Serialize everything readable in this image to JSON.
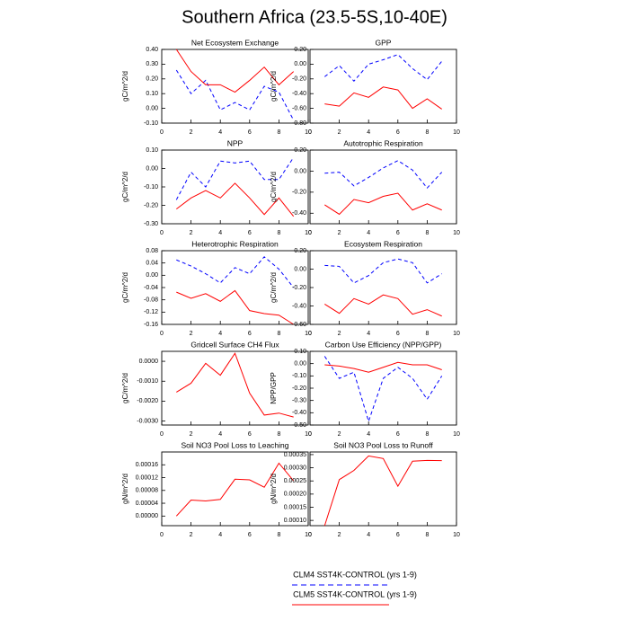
{
  "title": "Southern Africa (23.5-5S,10-40E)",
  "chart_data": [
    {
      "type": "line",
      "title": "Net Ecosystem Exchange",
      "ylabel": "gC/m^2/d",
      "x": [
        1,
        2,
        3,
        4,
        5,
        6,
        7,
        8,
        9
      ],
      "xlim": [
        0,
        10
      ],
      "xticks": [
        0,
        2,
        4,
        6,
        8,
        10
      ],
      "ylim": [
        -0.1,
        0.4
      ],
      "yticks": [
        {
          "value": -0.1,
          "label": "-0.10"
        },
        {
          "value": 0,
          "label": "0.00"
        },
        {
          "value": 0.1,
          "label": "0.10"
        },
        {
          "value": 0.2,
          "label": "0.20"
        },
        {
          "value": 0.3,
          "label": "0.30"
        },
        {
          "value": 0.4,
          "label": "0.40"
        }
      ],
      "series": [
        {
          "name": "CLM4 SST4K-CONTROL (yrs 1-9)",
          "color": "#0000ff",
          "dashed": true,
          "values": [
            0.26,
            0.1,
            0.19,
            -0.01,
            0.04,
            -0.01,
            0.15,
            0.11,
            -0.08
          ]
        },
        {
          "name": "CLM5 SST4K-CONTROL (yrs 1-9)",
          "color": "#ff0000",
          "dashed": false,
          "values": [
            0.4,
            0.25,
            0.16,
            0.16,
            0.11,
            0.19,
            0.28,
            0.16,
            0.25
          ]
        }
      ]
    },
    {
      "type": "line",
      "title": "GPP",
      "ylabel": "gC/m^2/d",
      "x": [
        1,
        2,
        3,
        4,
        5,
        6,
        7,
        8,
        9
      ],
      "xlim": [
        0,
        10
      ],
      "xticks": [
        0,
        2,
        4,
        6,
        8,
        10
      ],
      "ylim": [
        -0.8,
        0.2
      ],
      "yticks": [
        {
          "value": -0.8,
          "label": "-0.80"
        },
        {
          "value": -0.6,
          "label": "-0.60"
        },
        {
          "value": -0.4,
          "label": "-0.40"
        },
        {
          "value": -0.2,
          "label": "-0.20"
        },
        {
          "value": 0,
          "label": "0.00"
        },
        {
          "value": 0.2,
          "label": "0.20"
        }
      ],
      "series": [
        {
          "name": "CLM4 SST4K-CONTROL (yrs 1-9)",
          "color": "#0000ff",
          "dashed": true,
          "values": [
            -0.17,
            -0.02,
            -0.23,
            0.0,
            0.06,
            0.13,
            -0.06,
            -0.21,
            0.04
          ]
        },
        {
          "name": "CLM5 SST4K-CONTROL (yrs 1-9)",
          "color": "#ff0000",
          "dashed": false,
          "values": [
            -0.54,
            -0.57,
            -0.39,
            -0.45,
            -0.31,
            -0.35,
            -0.6,
            -0.47,
            -0.61
          ]
        }
      ]
    },
    {
      "type": "line",
      "title": "NPP",
      "ylabel": "gC/m^2/d",
      "x": [
        1,
        2,
        3,
        4,
        5,
        6,
        7,
        8,
        9
      ],
      "xlim": [
        0,
        10
      ],
      "xticks": [
        0,
        2,
        4,
        6,
        8,
        10
      ],
      "ylim": [
        -0.3,
        0.1
      ],
      "yticks": [
        {
          "value": -0.3,
          "label": "-0.30"
        },
        {
          "value": -0.2,
          "label": "-0.20"
        },
        {
          "value": -0.1,
          "label": "-0.10"
        },
        {
          "value": 0,
          "label": "0.00"
        },
        {
          "value": 0.1,
          "label": "0.10"
        }
      ],
      "series": [
        {
          "name": "CLM4 SST4K-CONTROL (yrs 1-9)",
          "color": "#0000ff",
          "dashed": true,
          "values": [
            -0.17,
            -0.02,
            -0.1,
            0.04,
            0.03,
            0.04,
            -0.06,
            -0.06,
            0.06
          ]
        },
        {
          "name": "CLM5 SST4K-CONTROL (yrs 1-9)",
          "color": "#ff0000",
          "dashed": false,
          "values": [
            -0.22,
            -0.16,
            -0.12,
            -0.16,
            -0.08,
            -0.16,
            -0.25,
            -0.16,
            -0.26
          ]
        }
      ]
    },
    {
      "type": "line",
      "title": "Autotrophic Respiration",
      "ylabel": "gC/m^2/d",
      "x": [
        1,
        2,
        3,
        4,
        5,
        6,
        7,
        8,
        9
      ],
      "xlim": [
        0,
        10
      ],
      "xticks": [
        0,
        2,
        4,
        6,
        8,
        10
      ],
      "ylim": [
        -0.5,
        0.2
      ],
      "yticks": [
        {
          "value": -0.4,
          "label": "-0.40"
        },
        {
          "value": -0.2,
          "label": "-0.20"
        },
        {
          "value": 0,
          "label": "0.00"
        },
        {
          "value": 0.2,
          "label": "0.20"
        }
      ],
      "series": [
        {
          "name": "CLM4 SST4K-CONTROL (yrs 1-9)",
          "color": "#0000ff",
          "dashed": true,
          "values": [
            -0.02,
            -0.01,
            -0.14,
            -0.06,
            0.03,
            0.1,
            0.01,
            -0.16,
            -0.01
          ]
        },
        {
          "name": "CLM5 SST4K-CONTROL (yrs 1-9)",
          "color": "#ff0000",
          "dashed": false,
          "values": [
            -0.32,
            -0.41,
            -0.27,
            -0.3,
            -0.24,
            -0.21,
            -0.37,
            -0.31,
            -0.37
          ]
        }
      ]
    },
    {
      "type": "line",
      "title": "Heterotrophic Respiration",
      "ylabel": "gC/m^2/d",
      "x": [
        1,
        2,
        3,
        4,
        5,
        6,
        7,
        8,
        9
      ],
      "xlim": [
        0,
        10
      ],
      "xticks": [
        0,
        2,
        4,
        6,
        8,
        10
      ],
      "ylim": [
        -0.16,
        0.08
      ],
      "yticks": [
        {
          "value": -0.16,
          "label": "-0.16"
        },
        {
          "value": -0.12,
          "label": "-0.12"
        },
        {
          "value": -0.08,
          "label": "-0.08"
        },
        {
          "value": -0.04,
          "label": "-0.04"
        },
        {
          "value": 0,
          "label": "0.00"
        },
        {
          "value": 0.04,
          "label": "0.04"
        },
        {
          "value": 0.08,
          "label": "0.08"
        }
      ],
      "series": [
        {
          "name": "CLM4 SST4K-CONTROL (yrs 1-9)",
          "color": "#0000ff",
          "dashed": true,
          "values": [
            0.05,
            0.03,
            0.005,
            -0.025,
            0.025,
            0.005,
            0.06,
            0.02,
            -0.04
          ]
        },
        {
          "name": "CLM5 SST4K-CONTROL (yrs 1-9)",
          "color": "#ff0000",
          "dashed": false,
          "values": [
            -0.055,
            -0.075,
            -0.06,
            -0.085,
            -0.05,
            -0.115,
            -0.125,
            -0.13,
            -0.16
          ]
        }
      ]
    },
    {
      "type": "line",
      "title": "Ecosystem Respiration",
      "ylabel": "gC/m^2/d",
      "x": [
        1,
        2,
        3,
        4,
        5,
        6,
        7,
        8,
        9
      ],
      "xlim": [
        0,
        10
      ],
      "xticks": [
        0,
        2,
        4,
        6,
        8,
        10
      ],
      "ylim": [
        -0.6,
        0.2
      ],
      "yticks": [
        {
          "value": -0.6,
          "label": "-0.60"
        },
        {
          "value": -0.4,
          "label": "-0.40"
        },
        {
          "value": -0.2,
          "label": "-0.20"
        },
        {
          "value": 0,
          "label": "0.00"
        },
        {
          "value": 0.2,
          "label": "0.20"
        }
      ],
      "series": [
        {
          "name": "CLM4 SST4K-CONTROL (yrs 1-9)",
          "color": "#0000ff",
          "dashed": true,
          "values": [
            0.04,
            0.03,
            -0.15,
            -0.07,
            0.07,
            0.11,
            0.07,
            -0.15,
            -0.05
          ]
        },
        {
          "name": "CLM5 SST4K-CONTROL (yrs 1-9)",
          "color": "#ff0000",
          "dashed": false,
          "values": [
            -0.38,
            -0.48,
            -0.32,
            -0.38,
            -0.28,
            -0.32,
            -0.49,
            -0.44,
            -0.51
          ]
        }
      ]
    },
    {
      "type": "line",
      "title": "Gridcell Surface CH4 Flux",
      "ylabel": "gC/m^2/d",
      "x": [
        1,
        2,
        3,
        4,
        5,
        6,
        7,
        8,
        9
      ],
      "xlim": [
        0,
        10
      ],
      "xticks": [
        0,
        2,
        4,
        6,
        8,
        10
      ],
      "ylim": [
        -0.0032,
        0.0005
      ],
      "yticks": [
        {
          "value": -0.003,
          "label": "-0.0030"
        },
        {
          "value": -0.002,
          "label": "-0.0020"
        },
        {
          "value": -0.001,
          "label": "-0.0010"
        },
        {
          "value": 0,
          "label": "0.0000"
        }
      ],
      "series": [
        {
          "name": "CLM5 SST4K-CONTROL (yrs 1-9)",
          "color": "#ff0000",
          "dashed": false,
          "values": [
            -0.00155,
            -0.0011,
            -0.0001,
            -0.0007,
            0.0004,
            -0.0016,
            -0.0027,
            -0.0026,
            -0.0028
          ]
        }
      ]
    },
    {
      "type": "line",
      "title": "Carbon Use Efficiency (NPP/GPP)",
      "ylabel": "NPP/GPP",
      "x": [
        1,
        2,
        3,
        4,
        5,
        6,
        7,
        8,
        9
      ],
      "xlim": [
        0,
        10
      ],
      "xticks": [
        0,
        2,
        4,
        6,
        8,
        10
      ],
      "ylim": [
        -0.5,
        0.1
      ],
      "yticks": [
        {
          "value": -0.5,
          "label": "-0.50"
        },
        {
          "value": -0.4,
          "label": "-0.40"
        },
        {
          "value": -0.3,
          "label": "-0.30"
        },
        {
          "value": -0.2,
          "label": "-0.20"
        },
        {
          "value": -0.1,
          "label": "-0.10"
        },
        {
          "value": 0,
          "label": "0.00"
        },
        {
          "value": 0.1,
          "label": "0.10"
        }
      ],
      "series": [
        {
          "name": "CLM4 SST4K-CONTROL (yrs 1-9)",
          "color": "#0000ff",
          "dashed": true,
          "values": [
            0.06,
            -0.12,
            -0.07,
            -0.47,
            -0.12,
            -0.03,
            -0.12,
            -0.29,
            -0.1
          ]
        },
        {
          "name": "CLM5 SST4K-CONTROL (yrs 1-9)",
          "color": "#ff0000",
          "dashed": false,
          "values": [
            -0.01,
            -0.02,
            -0.04,
            -0.07,
            -0.03,
            0.01,
            -0.01,
            -0.01,
            -0.05
          ]
        }
      ]
    },
    {
      "type": "line",
      "title": "Soil NO3 Pool Loss to Leaching",
      "ylabel": "gN/m^2/d",
      "x": [
        1,
        2,
        3,
        4,
        5,
        6,
        7,
        8,
        9
      ],
      "xlim": [
        0,
        10
      ],
      "xticks": [
        0,
        2,
        4,
        6,
        8,
        10
      ],
      "ylim": [
        -3e-05,
        0.0002
      ],
      "yticks": [
        {
          "value": 0,
          "label": "0.00000"
        },
        {
          "value": 4e-05,
          "label": "0.00004"
        },
        {
          "value": 8e-05,
          "label": "0.00008"
        },
        {
          "value": 0.00012,
          "label": "0.00012"
        },
        {
          "value": 0.00016,
          "label": "0.00016"
        }
      ],
      "series": [
        {
          "name": "CLM5 SST4K-CONTROL (yrs 1-9)",
          "color": "#ff0000",
          "dashed": false,
          "values": [
            0.0,
            5e-05,
            4.7e-05,
            5.2e-05,
            0.000115,
            0.000113,
            9e-05,
            0.000165,
            0.00011
          ]
        }
      ]
    },
    {
      "type": "line",
      "title": "Soil NO3 Pool Loss to Runoff",
      "ylabel": "gN/m^2/d",
      "x": [
        1,
        2,
        3,
        4,
        5,
        6,
        7,
        8,
        9
      ],
      "xlim": [
        0,
        10
      ],
      "xticks": [
        0,
        2,
        4,
        6,
        8,
        10
      ],
      "ylim": [
        8e-05,
        0.00036
      ],
      "yticks": [
        {
          "value": 0.0001,
          "label": "0.00010"
        },
        {
          "value": 0.00015,
          "label": "0.00015"
        },
        {
          "value": 0.0002,
          "label": "0.00020"
        },
        {
          "value": 0.00025,
          "label": "0.00025"
        },
        {
          "value": 0.0003,
          "label": "0.00030"
        },
        {
          "value": 0.00035,
          "label": "0.00035"
        }
      ],
      "series": [
        {
          "name": "CLM5 SST4K-CONTROL (yrs 1-9)",
          "color": "#ff0000",
          "dashed": false,
          "values": [
            8e-05,
            0.000255,
            0.00029,
            0.000345,
            0.000335,
            0.00023,
            0.000325,
            0.000328,
            0.000327
          ]
        }
      ]
    }
  ]
}
